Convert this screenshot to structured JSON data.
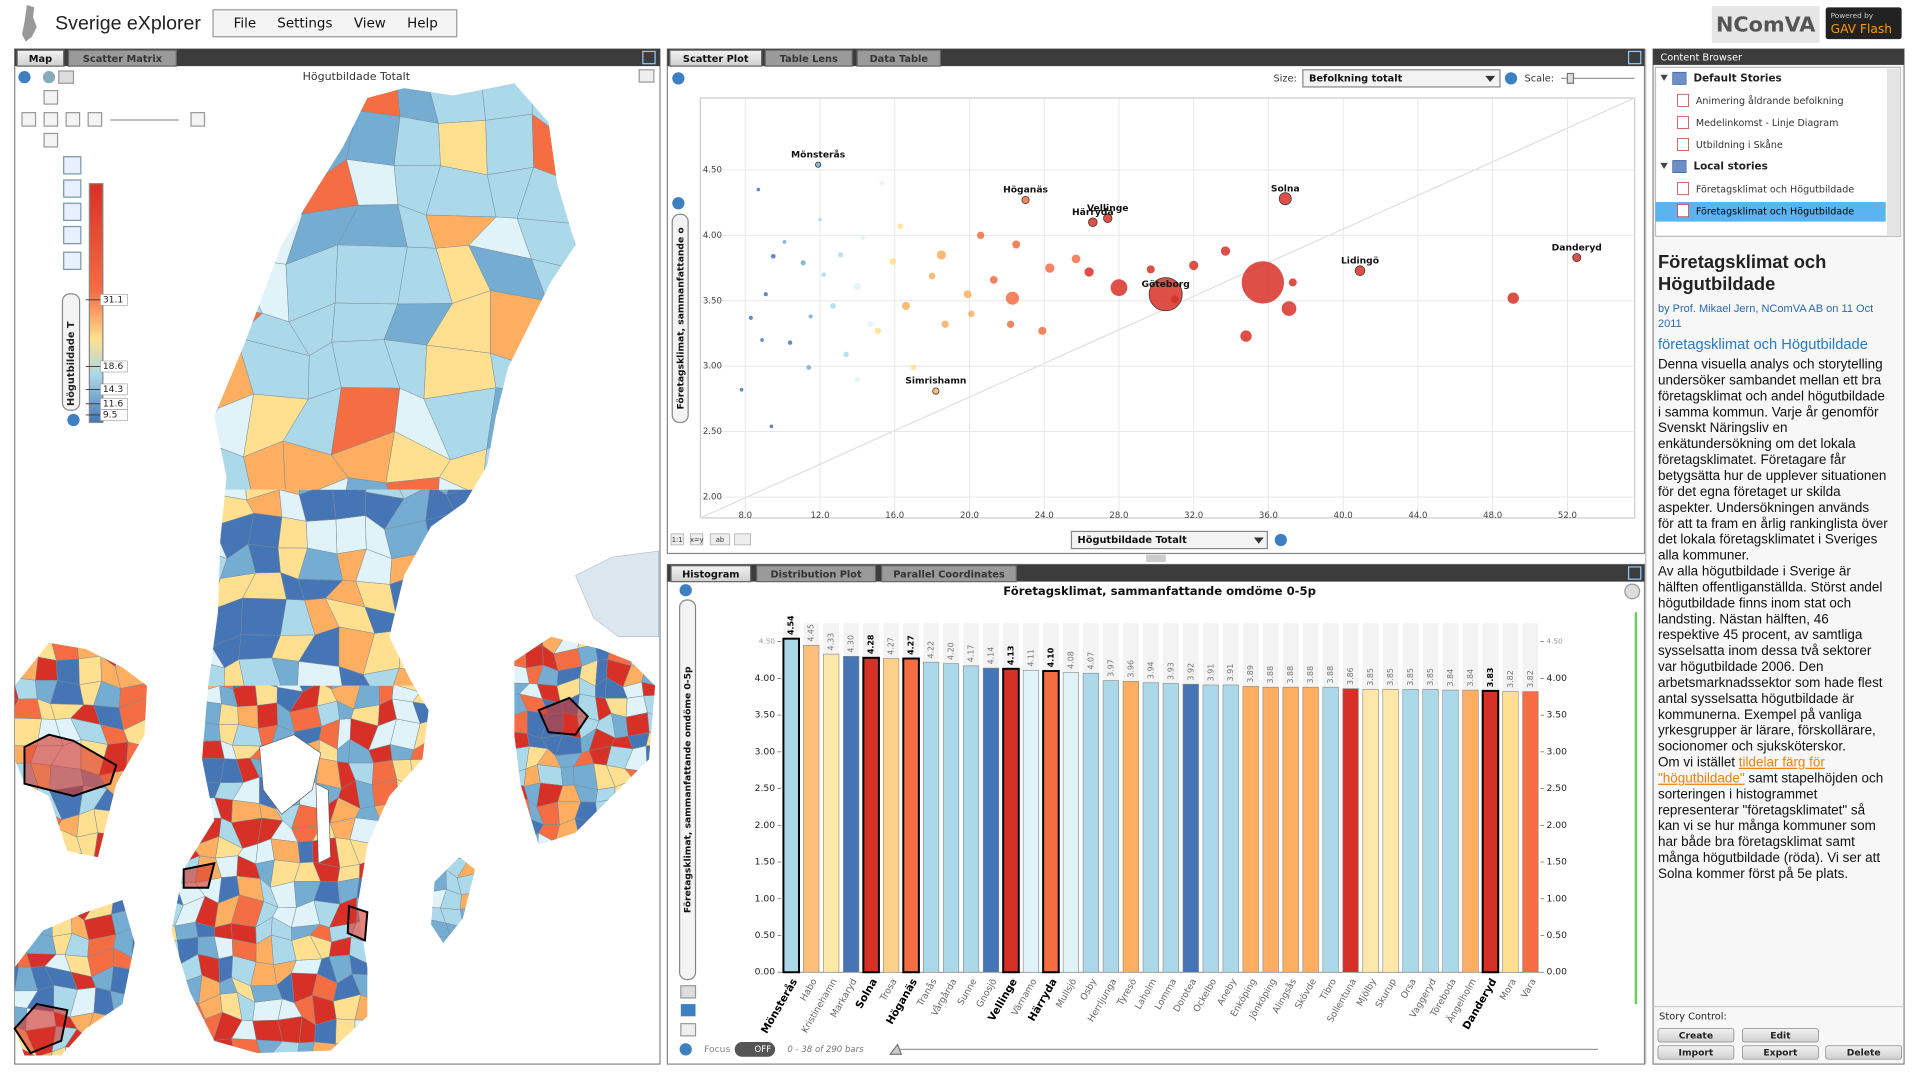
{
  "app": {
    "title": "Sverige eXplorer",
    "menu": [
      "File",
      "Settings",
      "View",
      "Help"
    ],
    "logo": "NComVA",
    "powered_by": "Powered by",
    "engine": "GAV Flash"
  },
  "map_panel": {
    "tabs": [
      "Map",
      "Scatter Matrix"
    ],
    "title": "Högutbildade Totalt",
    "legend": {
      "label": "Högutbildade T",
      "lim": [
        8.1,
        52.9
      ],
      "ticks": [
        31.1,
        18.6,
        14.3,
        11.6,
        9.5
      ]
    }
  },
  "scatter_panel": {
    "tabs": [
      "Scatter Plot",
      "Table Lens",
      "Data Table"
    ],
    "size_label": "Size:",
    "size_variable": "Befolkning totalt",
    "scale_label": "Scale:",
    "tools": [
      "1:1",
      "x=y",
      "ab"
    ]
  },
  "histogram_panel": {
    "tabs": [
      "Histogram",
      "Distribution Plot",
      "Parallel Coordinates"
    ],
    "focus_label": "Focus",
    "focus_state": "OFF",
    "range_text": "0 - 38 of 290 bars"
  },
  "chart_data": [
    {
      "type": "scatter",
      "x_label": "Högutbildade Totalt",
      "y_label": "Företagsklimat, sammanfattande o",
      "grid": true,
      "xlim": [
        5.6,
        55.6
      ],
      "ylim": [
        1.84,
        5.05
      ],
      "xticks": [
        {
          "value": 8,
          "label": "8.0"
        },
        {
          "value": 12,
          "label": "12.0"
        },
        {
          "value": 16,
          "label": "16.0"
        },
        {
          "value": 20,
          "label": "20.0"
        },
        {
          "value": 24,
          "label": "24.0"
        },
        {
          "value": 28,
          "label": "28.0"
        },
        {
          "value": 32,
          "label": "32.0"
        },
        {
          "value": 36,
          "label": "36.0"
        },
        {
          "value": 40,
          "label": "40.0"
        },
        {
          "value": 44,
          "label": "44.0"
        },
        {
          "value": 48,
          "label": "48.0"
        },
        {
          "value": 52,
          "label": "52.0"
        }
      ],
      "yticks": [
        {
          "value": 2,
          "label": "2.00"
        },
        {
          "value": 2.5,
          "label": "2.50"
        },
        {
          "value": 3,
          "label": "3.00"
        },
        {
          "value": 3.5,
          "label": "3.50"
        },
        {
          "value": 4,
          "label": "4.00"
        },
        {
          "value": 4.5,
          "label": "4.50"
        }
      ],
      "series": [
        {
          "x": [
            11.9,
            23.0,
            26.6,
            27.4,
            36.9,
            52.5,
            40.9,
            30.5,
            18.2,
            35.7,
            37.1,
            34.8,
            49.1,
            28.0,
            32.0,
            33.7,
            37.3,
            24.3,
            22.3,
            23.9,
            20.6,
            18.5,
            16.6,
            15.1,
            14.0,
            12.7,
            11.1,
            9.5,
            8.7,
            8.3,
            7.8,
            9.4,
            17.0,
            14.0,
            15.3,
            13.4,
            18.7,
            19.9,
            22.5,
            25.7,
            26.4,
            29.7,
            31.0,
            22.2,
            11.4,
            10.4,
            9.1,
            18.0,
            16.3,
            14.7,
            10.1,
            12.2,
            13.1,
            11.5,
            15.9,
            20.1,
            21.3,
            12.0,
            8.9,
            14.3
          ],
          "values": [
            4.54,
            4.27,
            4.1,
            4.13,
            4.28,
            3.83,
            3.73,
            3.55,
            2.81,
            3.64,
            3.44,
            3.23,
            3.52,
            3.6,
            3.77,
            3.88,
            3.64,
            3.75,
            3.52,
            3.27,
            4.0,
            3.85,
            3.46,
            3.27,
            3.61,
            3.46,
            3.79,
            3.84,
            4.35,
            3.37,
            2.82,
            2.54,
            2.99,
            2.9,
            4.4,
            3.09,
            3.32,
            3.55,
            3.93,
            3.82,
            3.72,
            3.74,
            3.51,
            3.32,
            2.99,
            3.18,
            3.55,
            3.69,
            4.07,
            3.32,
            3.95,
            3.7,
            3.85,
            3.38,
            3.8,
            3.4,
            3.66,
            4.12,
            3.2,
            3.98
          ],
          "sizes": [
            13,
            25,
            35,
            34,
            68,
            31,
            44,
            510,
            19,
            830,
            100,
            60,
            60,
            130,
            40,
            40,
            30,
            40,
            80,
            30,
            25,
            40,
            30,
            20,
            25,
            15,
            12,
            10,
            6,
            8,
            5,
            4,
            15,
            12,
            10,
            14,
            25,
            30,
            30,
            35,
            40,
            30,
            30,
            25,
            10,
            9,
            8,
            20,
            15,
            18,
            7,
            9,
            12,
            8,
            22,
            20,
            28,
            6,
            5,
            11
          ],
          "colors": [
            "#74add1",
            "#f46d43",
            "#d73027",
            "#d73027",
            "#d73027",
            "#d73027",
            "#d73027",
            "#d73027",
            "#fdae61",
            "#d73027",
            "#d73027",
            "#d73027",
            "#d73027",
            "#d73027",
            "#d73027",
            "#d73027",
            "#d73027",
            "#f46d43",
            "#f46d43",
            "#f46d43",
            "#f46d43",
            "#fdae61",
            "#fdae61",
            "#fee090",
            "#e0f3f8",
            "#abd9e9",
            "#74add1",
            "#4575b4",
            "#4575b4",
            "#4575b4",
            "#4575b4",
            "#4575b4",
            "#fee090",
            "#e0f3f8",
            "#e0f3f8",
            "#abd9e9",
            "#fdae61",
            "#fdae61",
            "#f46d43",
            "#f46d43",
            "#d73027",
            "#d73027",
            "#d73027",
            "#f46d43",
            "#74add1",
            "#4575b4",
            "#4575b4",
            "#fdae61",
            "#fee090",
            "#e0f3f8",
            "#74add1",
            "#abd9e9",
            "#abd9e9",
            "#74add1",
            "#fee090",
            "#fdae61",
            "#f46d43",
            "#abd9e9",
            "#4575b4",
            "#e0f3f8"
          ],
          "labels": [
            "Mönsterås",
            "Höganäs",
            "Härryda",
            "Vellinge",
            "Solna",
            "Danderyd",
            "Lidingö",
            "Göteborg",
            "Simrishamn",
            null,
            null,
            null,
            null,
            null,
            null,
            null,
            null,
            null,
            null,
            null,
            null,
            null,
            null,
            null,
            null,
            null,
            null,
            null,
            null,
            null,
            null,
            null,
            null,
            null,
            null,
            null,
            null,
            null,
            null,
            null,
            null,
            null,
            null,
            null,
            null,
            null,
            null,
            null,
            null,
            null,
            null,
            null,
            null,
            null,
            null,
            null,
            null,
            null,
            null,
            null
          ]
        }
      ]
    },
    {
      "type": "bar",
      "title": "Företagsklimat, sammanfattande omdöme 0-5p",
      "y_label": "Företagsklimat, sammanfattande omdöme 0-5p",
      "ylim": [
        0,
        4.95
      ],
      "yticks": [
        {
          "value": 0,
          "label": "0.00"
        },
        {
          "value": 0.5,
          "label": "0.50"
        },
        {
          "value": 1,
          "label": "1.00"
        },
        {
          "value": 1.5,
          "label": "1.50"
        },
        {
          "value": 2,
          "label": "2.00"
        },
        {
          "value": 2.5,
          "label": "2.50"
        },
        {
          "value": 3,
          "label": "3.00"
        },
        {
          "value": 3.5,
          "label": "3.50"
        },
        {
          "value": 4,
          "label": "4.00"
        },
        {
          "value": 4.5,
          "label": "4.50"
        }
      ],
      "categories": [
        "Mönsterås",
        "Habo",
        "Kristinehamn",
        "Markaryd",
        "Solna",
        "Trosa",
        "Höganäs",
        "Tranås",
        "Vårgårda",
        "Sunne",
        "Gnosjö",
        "Vellinge",
        "Värnamo",
        "Härryda",
        "Mullsjö",
        "Osby",
        "Herrljunga",
        "Tyresö",
        "Laholm",
        "Lomma",
        "Dorotea",
        "Ockelbo",
        "Aneby",
        "Enköping",
        "Jönköping",
        "Alingsås",
        "Skövde",
        "Tibro",
        "Sollentuna",
        "Mjölby",
        "Skurup",
        "Orsa",
        "Vaggeryd",
        "Töreboda",
        "Ängelholm",
        "Danderyd",
        "Mora",
        "Vara"
      ],
      "values": [
        4.54,
        4.45,
        4.33,
        4.3,
        4.28,
        4.27,
        4.27,
        4.22,
        4.2,
        4.17,
        4.14,
        4.13,
        4.11,
        4.1,
        4.08,
        4.07,
        3.97,
        3.96,
        3.94,
        3.93,
        3.92,
        3.91,
        3.91,
        3.89,
        3.88,
        3.88,
        3.88,
        3.88,
        3.86,
        3.85,
        3.85,
        3.85,
        3.85,
        3.84,
        3.84,
        3.83,
        3.82,
        3.82
      ],
      "value_labels": [
        "4.54",
        "4.45",
        "4.33",
        "4.30",
        "4.28",
        "4.27",
        "4.27",
        "4.22",
        "4.20",
        "4.17",
        "4.14",
        "4.13",
        "4.11",
        "4.10",
        "4.08",
        "4.07",
        "3.97",
        "3.96",
        "3.94",
        "3.93",
        "3.92",
        "3.91",
        "3.91",
        "3.89",
        "3.88",
        "3.88",
        "3.88",
        "3.88",
        "3.86",
        "3.85",
        "3.85",
        "3.85",
        "3.85",
        "3.84",
        "3.84",
        "3.83",
        "3.82",
        "3.82"
      ],
      "colors": [
        "#abd9e9",
        "#fdc07a",
        "#fee8a8",
        "#4575b4",
        "#d73027",
        "#fdd08a",
        "#f46d43",
        "#abd9e9",
        "#abd9e9",
        "#abd9e9",
        "#4575b4",
        "#d73027",
        "#e0f3f8",
        "#f46d43",
        "#e0f3f8",
        "#abd9e9",
        "#abd9e9",
        "#fdae61",
        "#abd9e9",
        "#abd9e9",
        "#4575b4",
        "#abd9e9",
        "#abd9e9",
        "#fdae61",
        "#fdae61",
        "#fdae61",
        "#fdae61",
        "#abd9e9",
        "#d73027",
        "#fee8a8",
        "#fee8a8",
        "#abd9e9",
        "#abd9e9",
        "#abd9e9",
        "#fdae61",
        "#d73027",
        "#fee090",
        "#f46d43"
      ],
      "selected": [
        true,
        false,
        false,
        false,
        true,
        false,
        true,
        false,
        false,
        false,
        false,
        true,
        false,
        true,
        false,
        false,
        false,
        false,
        false,
        false,
        false,
        false,
        false,
        false,
        false,
        false,
        false,
        false,
        false,
        false,
        false,
        false,
        false,
        false,
        false,
        true,
        false,
        false
      ]
    }
  ],
  "content_browser": {
    "title": "Content Browser",
    "groups": [
      {
        "name": "Default Stories",
        "items": [
          "Animering åldrande befolkning",
          "Medelinkomst - Linje Diagram",
          "Utbildning i Skåne"
        ]
      },
      {
        "name": "Local stories",
        "items": [
          "Företagsklimat och Högutbildade",
          "Företagsklimat och Högutbildade"
        ]
      }
    ]
  },
  "story": {
    "title": "Företagsklimat och Högutbildade",
    "byline": "by Prof. Mikael Jern, NComVA AB on 11 Oct 2011",
    "link": "företagsklimat och Högutbildade",
    "paragraphs": [
      "Denna visuella analys och storytelling undersöker sambandet mellan ett bra företagsklimat och andel högutbildade i samma kommun. Varje år genomför Svenskt Näringsliv en enkätundersökning om det lokala företagsklimatet. Företagare får betygsätta hur de upplever situationen för det egna företaget ur skilda aspekter. Undersökningen används för att ta fram en årlig rankinglista över det lokala företagsklimatet i Sveriges alla kommuner.",
      "Av alla högutbildade i Sverige är hälften offentliganställda. Störst andel högutbildade finns inom stat och landsting. Nästan hälften, 46 respektive 45 procent, av samtliga sysselsatta inom dessa två sektorer var högutbildade 2006. Den arbetsmarknadssektor som hade flest antal sysselsatta högutbildade är kommunerna. Exempel på vanliga yrkesgrupper är lärare, förskollärare, socionomer och sjuksköterskor."
    ],
    "closing": {
      "before": "Om vi istället ",
      "link": "tildelar färg för \"högutbildade\"",
      "after": " samt stapelhöjden och sorteringen i histogrammet representerar \"företagsklimatet\" så kan vi se hur många kommuner som har både bra företagsklimat samt många högutbildade (röda). Vi ser att Solna kommer först på 5e plats."
    }
  },
  "story_control": {
    "label": "Story Control:",
    "buttons": [
      "Create",
      "Edit",
      "Import",
      "Export",
      "Delete"
    ]
  }
}
